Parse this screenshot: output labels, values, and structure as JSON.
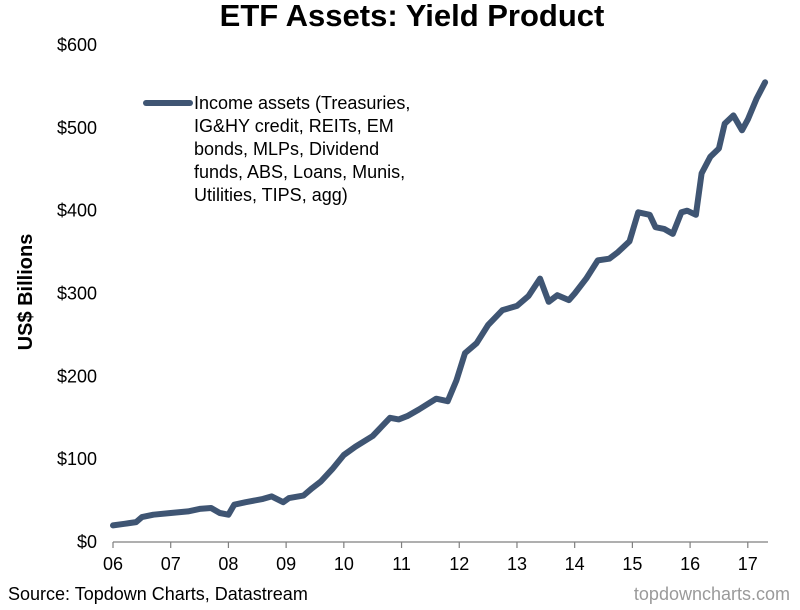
{
  "chart_data": {
    "type": "line",
    "title": "ETF Assets: Yield Product",
    "ylabel": "US$ Billions",
    "xlabel": "",
    "xlim": [
      2006.0,
      2017.35
    ],
    "ylim": [
      0,
      600
    ],
    "x_ticks": [
      {
        "value": 2006,
        "label": "06"
      },
      {
        "value": 2007,
        "label": "07"
      },
      {
        "value": 2008,
        "label": "08"
      },
      {
        "value": 2009,
        "label": "09"
      },
      {
        "value": 2010,
        "label": "10"
      },
      {
        "value": 2011,
        "label": "11"
      },
      {
        "value": 2012,
        "label": "12"
      },
      {
        "value": 2013,
        "label": "13"
      },
      {
        "value": 2014,
        "label": "14"
      },
      {
        "value": 2015,
        "label": "15"
      },
      {
        "value": 2016,
        "label": "16"
      },
      {
        "value": 2017,
        "label": "17"
      }
    ],
    "y_ticks": [
      {
        "value": 0,
        "label": "$0"
      },
      {
        "value": 100,
        "label": "$100"
      },
      {
        "value": 200,
        "label": "$200"
      },
      {
        "value": 300,
        "label": "$300"
      },
      {
        "value": 400,
        "label": "$400"
      },
      {
        "value": 500,
        "label": "$500"
      },
      {
        "value": 600,
        "label": "$600"
      }
    ],
    "grid": false,
    "legend_position": "top-left",
    "series": [
      {
        "name": "Income assets (Treasuries, IG&HY credit, REITs, EM bonds, MLPs, Dividend funds, ABS, Loans, Munis, Utilities, TIPS, agg)",
        "legend_lines": [
          "Income assets (Treasuries,",
          "IG&HY credit, REITs, EM",
          "bonds, MLPs, Dividend",
          "funds, ABS, Loans, Munis,",
          "Utilities, TIPS, agg)"
        ],
        "color": "#3f5573",
        "x": [
          2006.0,
          2006.2,
          2006.4,
          2006.5,
          2006.7,
          2007.0,
          2007.3,
          2007.5,
          2007.7,
          2007.85,
          2008.0,
          2008.1,
          2008.3,
          2008.6,
          2008.75,
          2008.95,
          2009.05,
          2009.3,
          2009.45,
          2009.6,
          2009.8,
          2010.0,
          2010.2,
          2010.5,
          2010.8,
          2010.95,
          2011.1,
          2011.3,
          2011.6,
          2011.8,
          2011.95,
          2012.1,
          2012.3,
          2012.5,
          2012.75,
          2013.0,
          2013.2,
          2013.4,
          2013.55,
          2013.7,
          2013.9,
          2014.0,
          2014.2,
          2014.4,
          2014.6,
          2014.75,
          2014.95,
          2015.1,
          2015.3,
          2015.4,
          2015.55,
          2015.7,
          2015.85,
          2015.95,
          2016.1,
          2016.2,
          2016.35,
          2016.5,
          2016.6,
          2016.75,
          2016.9,
          2017.0,
          2017.15,
          2017.3
        ],
        "y": [
          20,
          22,
          24,
          30,
          33,
          35,
          37,
          40,
          41,
          35,
          33,
          45,
          48,
          52,
          55,
          48,
          53,
          56,
          65,
          73,
          88,
          105,
          115,
          128,
          150,
          148,
          152,
          160,
          173,
          170,
          195,
          228,
          240,
          262,
          280,
          285,
          297,
          318,
          290,
          298,
          292,
          300,
          318,
          340,
          342,
          350,
          363,
          398,
          395,
          380,
          378,
          372,
          398,
          400,
          395,
          445,
          465,
          475,
          505,
          515,
          497,
          510,
          535,
          555
        ]
      }
    ]
  },
  "footer": {
    "source": "Source: Topdown Charts, Datastream",
    "brand": "topdowncharts.com"
  }
}
